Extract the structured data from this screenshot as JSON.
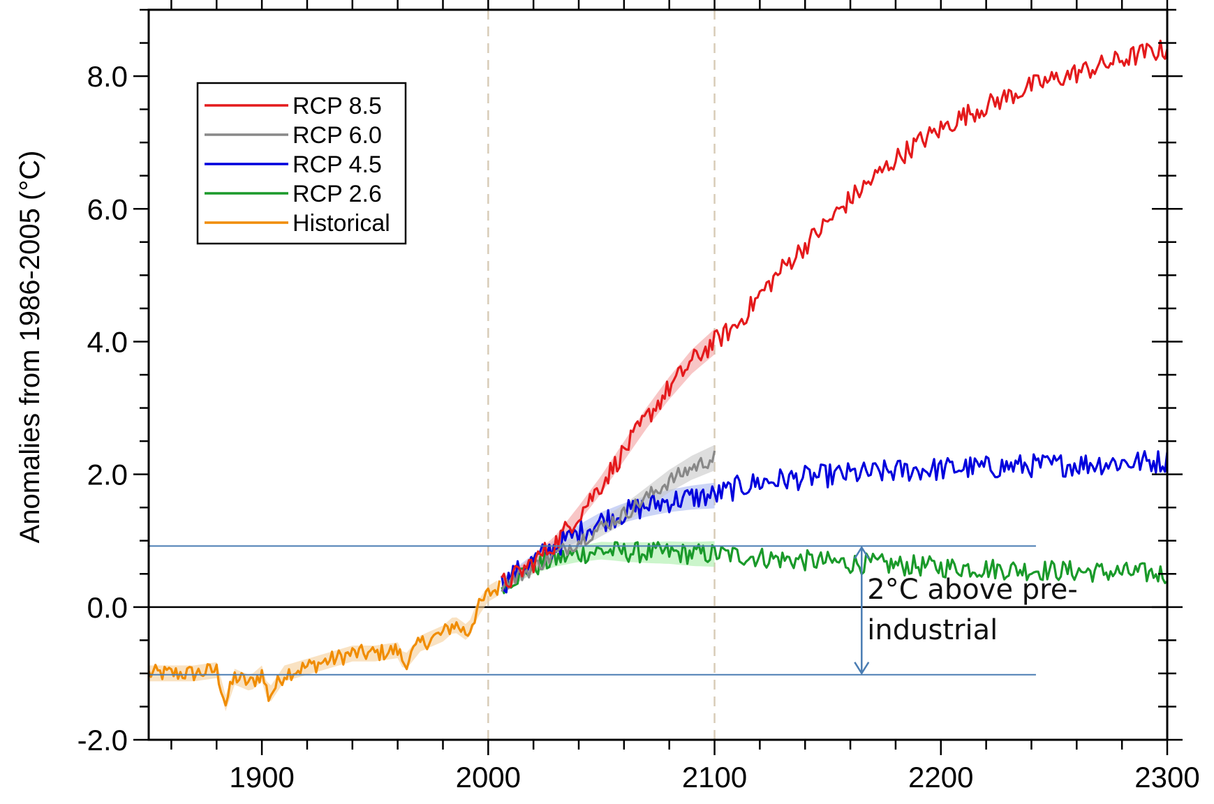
{
  "chart_data": {
    "type": "line",
    "title": "",
    "xlabel": "",
    "ylabel": "Anomalies from 1986-2005 (°C)",
    "xlim": [
      1850,
      2300
    ],
    "ylim": [
      -2.0,
      9.0
    ],
    "x_major_ticks": [
      1900,
      2000,
      2100,
      2200,
      2300
    ],
    "x_tick_labels": [
      "1900",
      "2000",
      "2100",
      "2200",
      "2300"
    ],
    "y_major_ticks": [
      -2.0,
      0.0,
      2.0,
      4.0,
      6.0,
      8.0
    ],
    "y_tick_labels": [
      "-2.0",
      "0.0",
      "2.0",
      "4.0",
      "6.0",
      "8.0"
    ],
    "grid": false,
    "legend_position": "top-left",
    "zero_line": true,
    "vertical_reference_lines": [
      2000,
      2100
    ],
    "series": [
      {
        "name": "RCP 8.5",
        "color": "#e41a1c",
        "x": [
          2006,
          2010,
          2020,
          2030,
          2040,
          2050,
          2060,
          2070,
          2080,
          2090,
          2100,
          2110,
          2120,
          2130,
          2140,
          2150,
          2160,
          2170,
          2180,
          2190,
          2200,
          2210,
          2220,
          2230,
          2240,
          2250,
          2260,
          2270,
          2280,
          2290,
          2300
        ],
        "values": [
          0.35,
          0.42,
          0.68,
          0.98,
          1.4,
          1.85,
          2.35,
          2.85,
          3.3,
          3.7,
          4.0,
          4.25,
          4.7,
          5.1,
          5.45,
          5.8,
          6.15,
          6.45,
          6.75,
          7.0,
          7.2,
          7.4,
          7.55,
          7.7,
          7.85,
          7.95,
          8.05,
          8.15,
          8.25,
          8.35,
          8.4
        ]
      },
      {
        "name": "RCP 6.0",
        "color": "#888888",
        "x": [
          2006,
          2010,
          2020,
          2030,
          2040,
          2050,
          2060,
          2070,
          2080,
          2090,
          2100
        ],
        "values": [
          0.35,
          0.4,
          0.6,
          0.8,
          1.0,
          1.2,
          1.4,
          1.65,
          1.9,
          2.1,
          2.25
        ]
      },
      {
        "name": "RCP 4.5",
        "color": "#0000dd",
        "x": [
          2006,
          2010,
          2020,
          2030,
          2040,
          2050,
          2060,
          2070,
          2080,
          2090,
          2100,
          2110,
          2120,
          2130,
          2140,
          2150,
          2160,
          2170,
          2180,
          2190,
          2200,
          2210,
          2220,
          2230,
          2240,
          2250,
          2260,
          2270,
          2280,
          2290,
          2300
        ],
        "values": [
          0.35,
          0.45,
          0.7,
          0.92,
          1.12,
          1.3,
          1.42,
          1.52,
          1.6,
          1.65,
          1.68,
          1.8,
          1.88,
          1.92,
          1.95,
          1.98,
          2.0,
          2.02,
          2.05,
          2.07,
          2.08,
          2.1,
          2.1,
          2.12,
          2.13,
          2.14,
          2.15,
          2.17,
          2.18,
          2.19,
          2.2
        ]
      },
      {
        "name": "RCP 2.6",
        "color": "#1a9a2a",
        "x": [
          2006,
          2010,
          2020,
          2030,
          2040,
          2050,
          2060,
          2070,
          2080,
          2090,
          2100,
          2110,
          2120,
          2130,
          2140,
          2150,
          2160,
          2170,
          2180,
          2190,
          2200,
          2210,
          2220,
          2230,
          2240,
          2250,
          2260,
          2270,
          2280,
          2290,
          2300
        ],
        "values": [
          0.35,
          0.42,
          0.6,
          0.72,
          0.8,
          0.85,
          0.83,
          0.82,
          0.82,
          0.8,
          0.8,
          0.78,
          0.75,
          0.72,
          0.7,
          0.68,
          0.66,
          0.65,
          0.63,
          0.62,
          0.6,
          0.6,
          0.58,
          0.57,
          0.56,
          0.55,
          0.54,
          0.53,
          0.52,
          0.51,
          0.5
        ]
      },
      {
        "name": "Historical",
        "color": "#f08c00",
        "x": [
          1850,
          1860,
          1870,
          1880,
          1884,
          1888,
          1895,
          1900,
          1903,
          1910,
          1920,
          1930,
          1940,
          1950,
          1960,
          1963,
          1970,
          1980,
          1985,
          1991,
          1995,
          2000,
          2005
        ],
        "values": [
          -1.0,
          -1.0,
          -1.0,
          -0.95,
          -1.45,
          -1.05,
          -1.15,
          -1.0,
          -1.35,
          -1.0,
          -0.9,
          -0.8,
          -0.7,
          -0.7,
          -0.65,
          -0.85,
          -0.55,
          -0.4,
          -0.25,
          -0.4,
          -0.05,
          0.2,
          0.3
        ]
      }
    ],
    "horizontal_lines": [
      0.92,
      -1.02
    ],
    "annotation": {
      "text_line1": "2°C above pre-",
      "text_line2": "industrial",
      "arrow_x": 2165,
      "arrow_from": 0.92,
      "arrow_to": -1.02,
      "line_color": "#4a7db3"
    }
  }
}
